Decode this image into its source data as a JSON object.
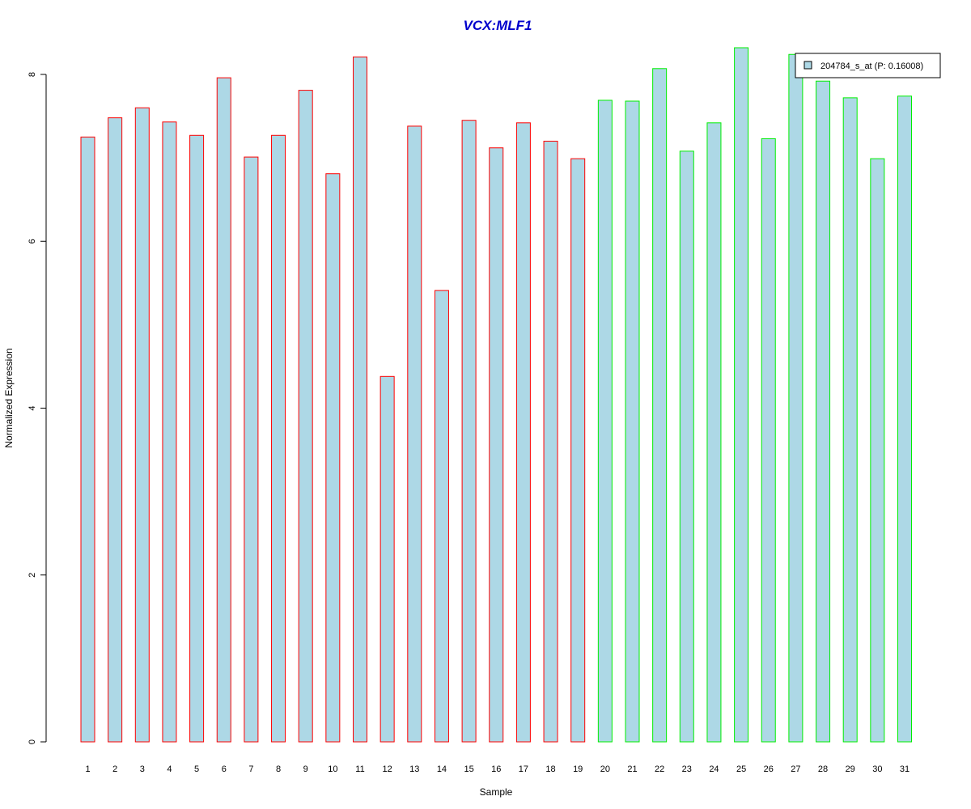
{
  "chart_data": {
    "type": "bar",
    "title": "VCX:MLF1",
    "xlabel": "Sample",
    "ylabel": "Normalized Expression",
    "categories": [
      "1",
      "2",
      "3",
      "4",
      "5",
      "6",
      "7",
      "8",
      "9",
      "10",
      "11",
      "12",
      "13",
      "14",
      "15",
      "16",
      "17",
      "18",
      "19",
      "20",
      "21",
      "22",
      "23",
      "24",
      "25",
      "26",
      "27",
      "28",
      "29",
      "30",
      "31"
    ],
    "series": [
      {
        "name": "204784_s_at (P: 0.16008)",
        "values": [
          7.25,
          7.48,
          7.6,
          7.43,
          7.27,
          7.96,
          7.01,
          7.27,
          7.81,
          6.81,
          8.21,
          4.38,
          7.38,
          5.41,
          7.45,
          7.12,
          7.42,
          7.2,
          6.99,
          7.69,
          7.68,
          8.07,
          7.08,
          7.42,
          8.32,
          7.23,
          8.24,
          7.92,
          7.72,
          6.99,
          7.74
        ]
      }
    ],
    "groups": [
      {
        "from": 1,
        "to": 19,
        "border_color": "#ff0000"
      },
      {
        "from": 20,
        "to": 31,
        "border_color": "#00ee00"
      }
    ],
    "fill_color": "#add8e6",
    "title_color": "#0000cc",
    "ylim": [
      0,
      8
    ],
    "yticks": [
      "0",
      "2",
      "4",
      "6",
      "8"
    ],
    "grid": false,
    "legend_position": "top-right"
  }
}
